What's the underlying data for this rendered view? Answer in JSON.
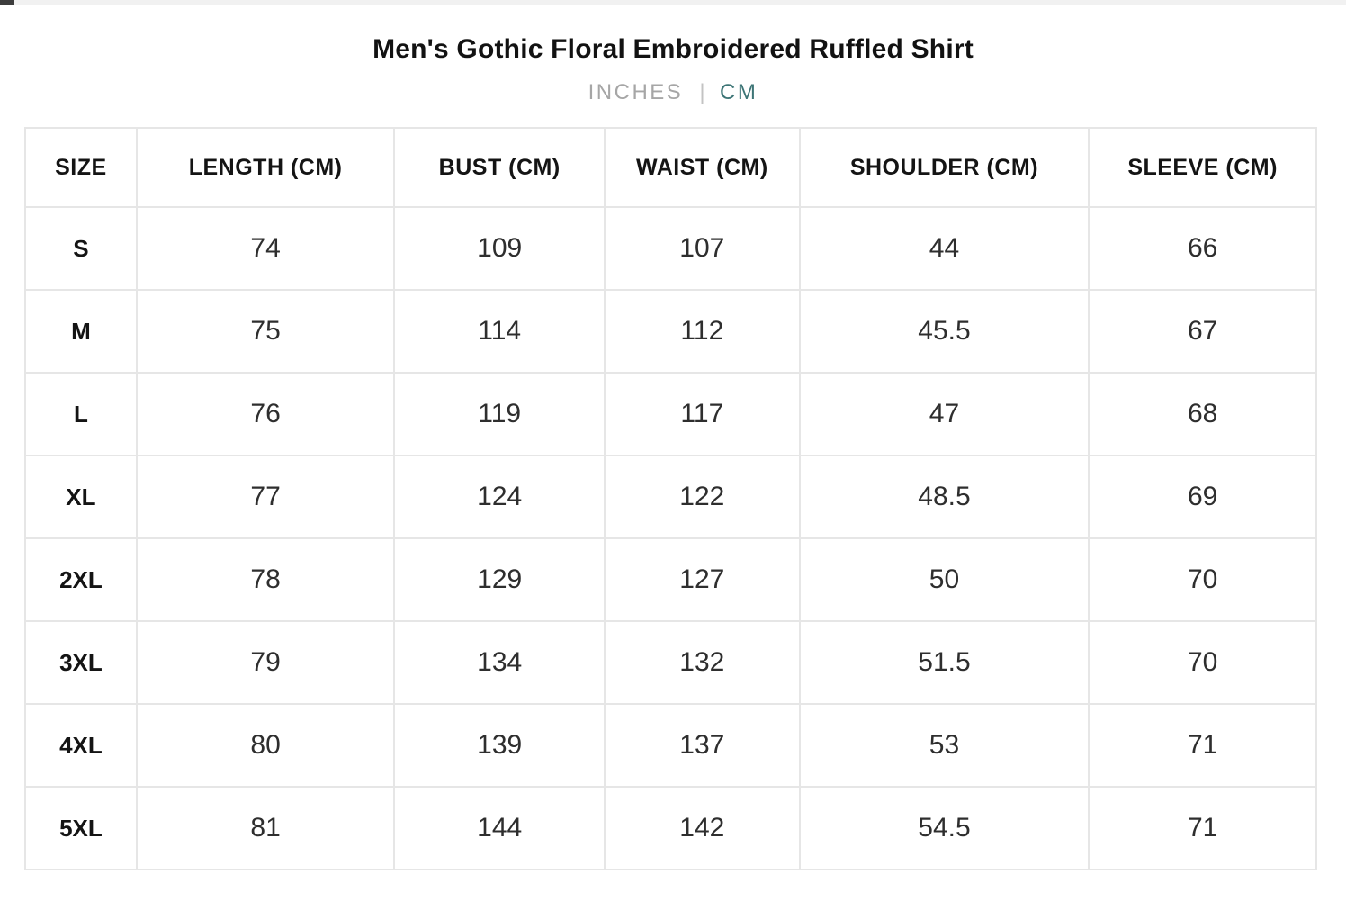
{
  "header": {
    "title": "Men's Gothic Floral Embroidered Ruffled Shirt",
    "units": {
      "inches": "INCHES",
      "separator": "|",
      "cm": "CM",
      "active": "CM"
    }
  },
  "colors": {
    "accent_teal": "#3D7576",
    "inactive_gray": "#A6A6A6",
    "table_border": "#E6E6E6",
    "text_dark": "#141414"
  },
  "size_chart": {
    "columns": [
      "SIZE",
      "LENGTH (CM)",
      "BUST (CM)",
      "WAIST (CM)",
      "SHOULDER (CM)",
      "SLEEVE (CM)"
    ],
    "rows": [
      {
        "size": "S",
        "values": [
          "74",
          "109",
          "107",
          "44",
          "66"
        ]
      },
      {
        "size": "M",
        "values": [
          "75",
          "114",
          "112",
          "45.5",
          "67"
        ]
      },
      {
        "size": "L",
        "values": [
          "76",
          "119",
          "117",
          "47",
          "68"
        ]
      },
      {
        "size": "XL",
        "values": [
          "77",
          "124",
          "122",
          "48.5",
          "69"
        ]
      },
      {
        "size": "2XL",
        "values": [
          "78",
          "129",
          "127",
          "50",
          "70"
        ]
      },
      {
        "size": "3XL",
        "values": [
          "79",
          "134",
          "132",
          "51.5",
          "70"
        ]
      },
      {
        "size": "4XL",
        "values": [
          "80",
          "139",
          "137",
          "53",
          "71"
        ]
      },
      {
        "size": "5XL",
        "values": [
          "81",
          "144",
          "142",
          "54.5",
          "71"
        ]
      }
    ]
  }
}
